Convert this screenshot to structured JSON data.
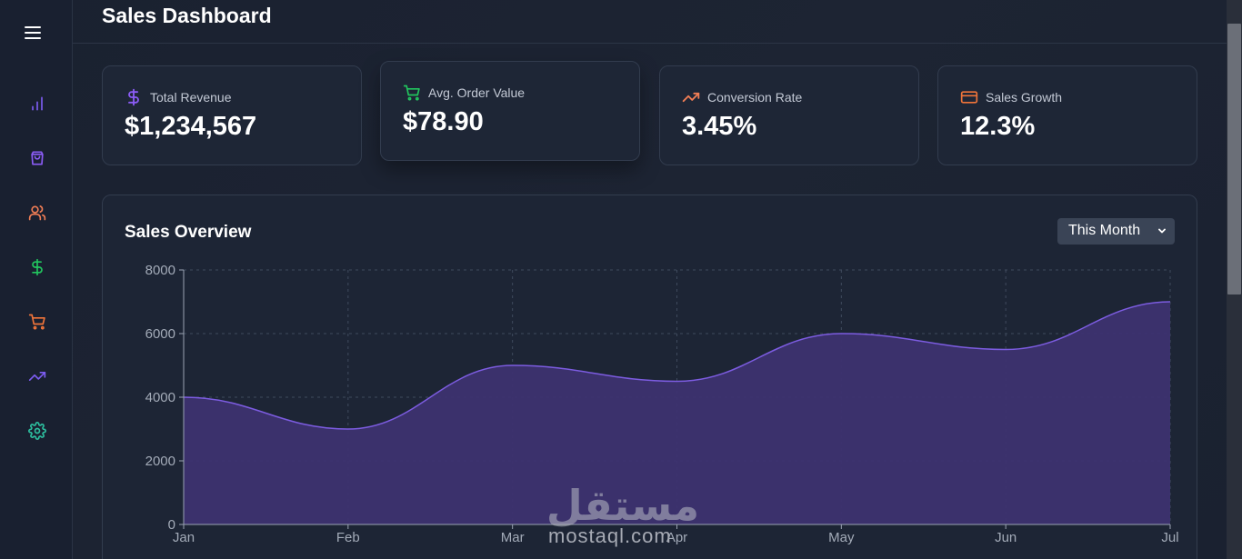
{
  "header": {
    "title": "Sales Dashboard"
  },
  "sidebar": {
    "items": [
      {
        "icon": "bar-chart-icon",
        "color": "#7c5cf0"
      },
      {
        "icon": "shopping-bag-icon",
        "color": "#8b5cf6"
      },
      {
        "icon": "users-icon",
        "color": "#f07d55"
      },
      {
        "icon": "dollar-icon",
        "color": "#22c55e"
      },
      {
        "icon": "cart-icon",
        "color": "#f0743a"
      },
      {
        "icon": "trending-up-icon",
        "color": "#7c5cf0"
      },
      {
        "icon": "settings-icon",
        "color": "#2dbf9f"
      }
    ]
  },
  "cards": [
    {
      "label": "Total Revenue",
      "value": "$1,234,567",
      "icon": "dollar-icon",
      "icon_color": "#8b5cf6"
    },
    {
      "label": "Avg. Order Value",
      "value": "$78.90",
      "icon": "cart-icon",
      "icon_color": "#22c55e"
    },
    {
      "label": "Conversion Rate",
      "value": "3.45%",
      "icon": "trending-up-icon",
      "icon_color": "#f07d55"
    },
    {
      "label": "Sales Growth",
      "value": "12.3%",
      "icon": "credit-card-icon",
      "icon_color": "#f0743a"
    }
  ],
  "panel": {
    "title": "Sales Overview",
    "period_select": {
      "value": "This Month"
    }
  },
  "watermark": {
    "arabic": "مستقل",
    "latin": "mostaql.com"
  },
  "colors": {
    "accent": "#6d4fd4",
    "area_fill": "#3d3270",
    "line": "#7c5ce0"
  },
  "chart_data": {
    "type": "area",
    "categories": [
      "Jan",
      "Feb",
      "Mar",
      "Apr",
      "May",
      "Jun",
      "Jul"
    ],
    "series": [
      {
        "values": [
          4000,
          3000,
          5000,
          4500,
          6000,
          5500,
          7000
        ]
      }
    ],
    "y_ticks": [
      0,
      2000,
      4000,
      6000,
      8000
    ],
    "ylim": [
      0,
      8000
    ],
    "grid": true,
    "xlabel": "",
    "ylabel": ""
  }
}
